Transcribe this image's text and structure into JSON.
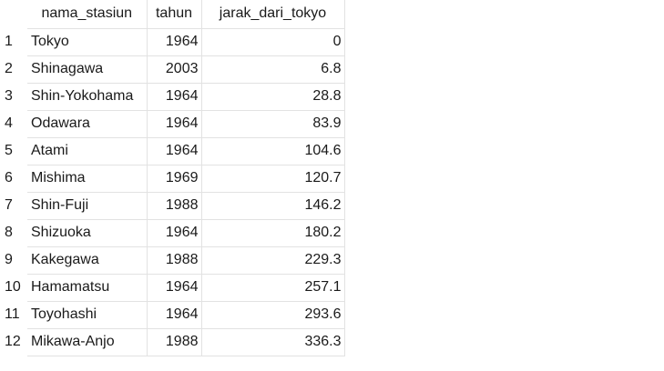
{
  "table": {
    "columns": [
      "nama_stasiun",
      "tahun",
      "jarak_dari_tokyo"
    ],
    "rows": [
      {
        "index": "1",
        "nama_stasiun": "Tokyo",
        "tahun": "1964",
        "jarak_dari_tokyo": "0"
      },
      {
        "index": "2",
        "nama_stasiun": "Shinagawa",
        "tahun": "2003",
        "jarak_dari_tokyo": "6.8"
      },
      {
        "index": "3",
        "nama_stasiun": "Shin-Yokohama",
        "tahun": "1964",
        "jarak_dari_tokyo": "28.8"
      },
      {
        "index": "4",
        "nama_stasiun": "Odawara",
        "tahun": "1964",
        "jarak_dari_tokyo": "83.9"
      },
      {
        "index": "5",
        "nama_stasiun": "Atami",
        "tahun": "1964",
        "jarak_dari_tokyo": "104.6"
      },
      {
        "index": "6",
        "nama_stasiun": "Mishima",
        "tahun": "1969",
        "jarak_dari_tokyo": "120.7"
      },
      {
        "index": "7",
        "nama_stasiun": "Shin-Fuji",
        "tahun": "1988",
        "jarak_dari_tokyo": "146.2"
      },
      {
        "index": "8",
        "nama_stasiun": "Shizuoka",
        "tahun": "1964",
        "jarak_dari_tokyo": "180.2"
      },
      {
        "index": "9",
        "nama_stasiun": "Kakegawa",
        "tahun": "1988",
        "jarak_dari_tokyo": "229.3"
      },
      {
        "index": "10",
        "nama_stasiun": "Hamamatsu",
        "tahun": "1964",
        "jarak_dari_tokyo": "257.1"
      },
      {
        "index": "11",
        "nama_stasiun": "Toyohashi",
        "tahun": "1964",
        "jarak_dari_tokyo": "293.6"
      },
      {
        "index": "12",
        "nama_stasiun": "Mikawa-Anjo",
        "tahun": "1988",
        "jarak_dari_tokyo": "336.3"
      }
    ]
  }
}
